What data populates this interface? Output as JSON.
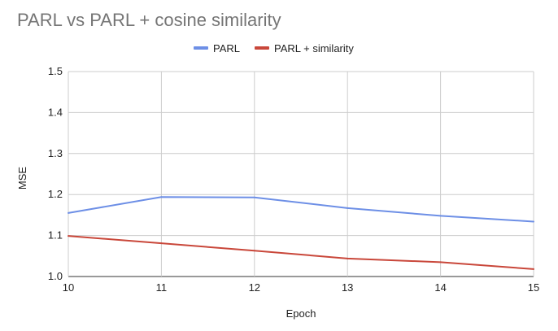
{
  "chart_data": {
    "type": "line",
    "title": "PARL vs PARL + cosine similarity",
    "xlabel": "Epoch",
    "ylabel": "MSE",
    "x": [
      10,
      11,
      12,
      13,
      14,
      15
    ],
    "xlim": [
      10,
      15
    ],
    "ylim": [
      1.0,
      1.5
    ],
    "yticks": [
      "1.0",
      "1.1",
      "1.2",
      "1.3",
      "1.4",
      "1.5"
    ],
    "xticks": [
      "10",
      "11",
      "12",
      "13",
      "14",
      "15"
    ],
    "grid": true,
    "legend_position": "top-center",
    "series": [
      {
        "name": "PARL",
        "color": "#6d8fe6",
        "values": [
          1.155,
          1.194,
          1.193,
          1.167,
          1.148,
          1.134
        ]
      },
      {
        "name": "PARL + similarity",
        "color": "#c9473a",
        "values": [
          1.099,
          1.081,
          1.063,
          1.044,
          1.035,
          1.018
        ]
      }
    ]
  }
}
